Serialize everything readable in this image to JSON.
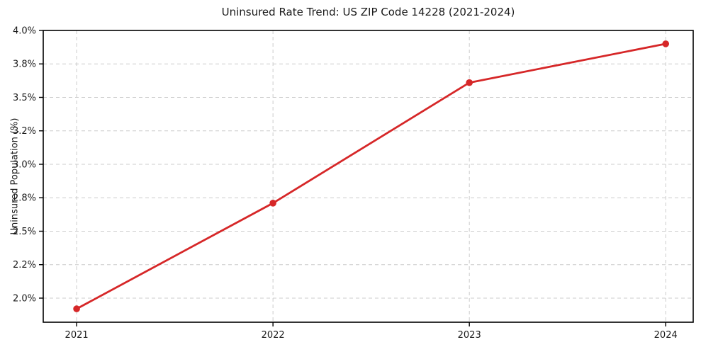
{
  "chart_data": {
    "type": "line",
    "title": "Uninsured Rate Trend: US ZIP Code 14228 (2021-2024)",
    "xlabel": "",
    "ylabel": "Uninsured Population (%)",
    "categories": [
      "2021",
      "2022",
      "2023",
      "2024"
    ],
    "values": [
      1.92,
      2.71,
      3.61,
      3.9
    ],
    "yticks": {
      "values": [
        2.0,
        2.25,
        2.5,
        2.75,
        3.0,
        3.25,
        3.5,
        3.75,
        4.0
      ],
      "labels": [
        "2.0%",
        "2.2%",
        "2.5%",
        "2.8%",
        "3.0%",
        "3.2%",
        "3.5%",
        "3.8%",
        "4.0%"
      ]
    },
    "ylim": [
      1.82,
      4.0
    ],
    "xlim": [
      -0.17,
      3.14
    ],
    "grid": true,
    "grid_style": "dashed",
    "legend_position": "none",
    "marker": "circle",
    "line_color": "#d62728",
    "grid_color": "#cccccc",
    "spine_color": "#000000",
    "text_color": "#1a1a1a",
    "background_color": "#ffffff"
  }
}
